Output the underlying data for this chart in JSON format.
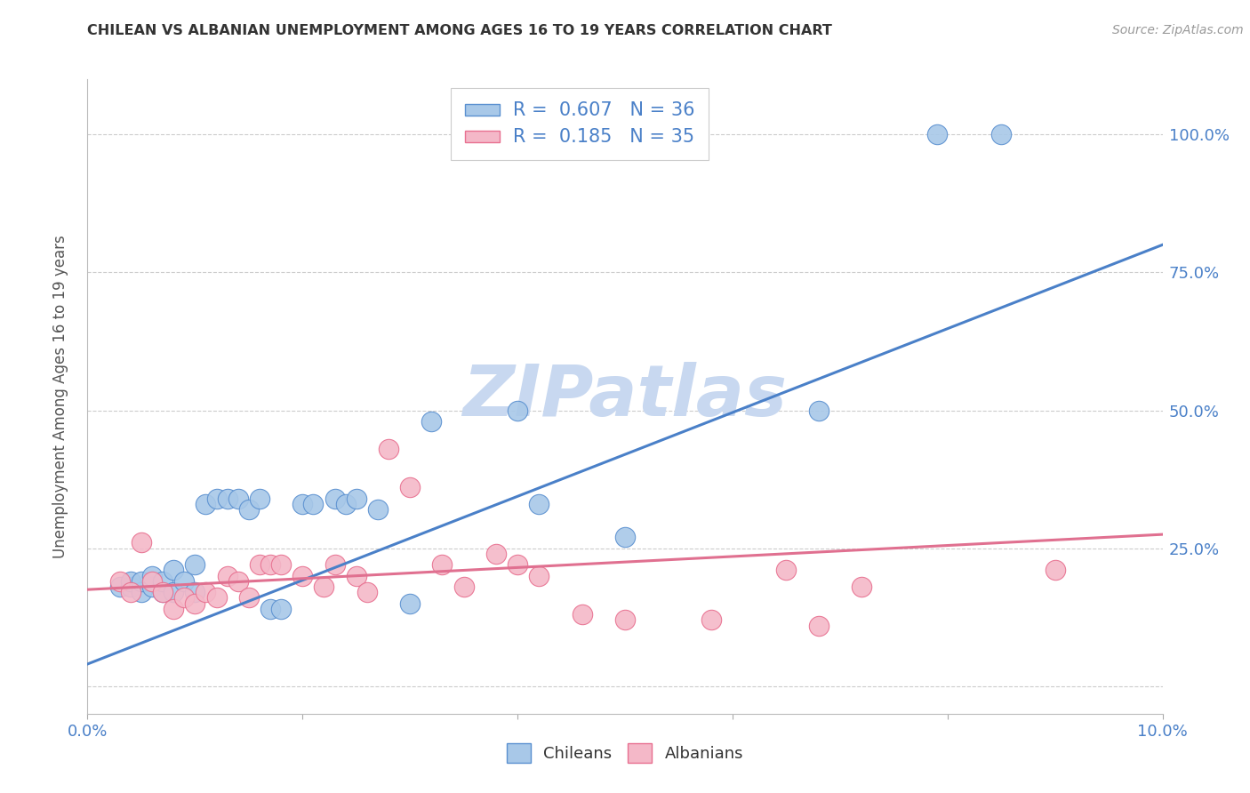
{
  "title": "CHILEAN VS ALBANIAN UNEMPLOYMENT AMONG AGES 16 TO 19 YEARS CORRELATION CHART",
  "source": "Source: ZipAtlas.com",
  "ylabel": "Unemployment Among Ages 16 to 19 years",
  "xlim": [
    0.0,
    0.1
  ],
  "ylim": [
    -0.05,
    1.1
  ],
  "x_ticks": [
    0.0,
    0.02,
    0.04,
    0.06,
    0.08,
    0.1
  ],
  "x_tick_labels": [
    "0.0%",
    "",
    "",
    "",
    "",
    "10.0%"
  ],
  "y_ticks": [
    0.0,
    0.25,
    0.5,
    0.75,
    1.0
  ],
  "y_tick_labels_right": [
    "",
    "25.0%",
    "50.0%",
    "75.0%",
    "100.0%"
  ],
  "chilean_R": 0.607,
  "chilean_N": 36,
  "albanian_R": 0.185,
  "albanian_N": 35,
  "chilean_color": "#A8C8E8",
  "albanian_color": "#F4B8C8",
  "chilean_edge_color": "#5A90D0",
  "albanian_edge_color": "#E87090",
  "chilean_line_color": "#4A80C8",
  "albanian_line_color": "#E07090",
  "watermark": "ZIPatlas",
  "watermark_color": "#C8D8F0",
  "chileans_scatter_x": [
    0.003,
    0.004,
    0.004,
    0.005,
    0.005,
    0.006,
    0.006,
    0.007,
    0.007,
    0.008,
    0.008,
    0.009,
    0.01,
    0.01,
    0.011,
    0.012,
    0.013,
    0.014,
    0.015,
    0.016,
    0.017,
    0.018,
    0.02,
    0.021,
    0.023,
    0.024,
    0.025,
    0.027,
    0.03,
    0.032,
    0.04,
    0.042,
    0.05,
    0.068,
    0.079,
    0.085
  ],
  "chileans_scatter_y": [
    0.18,
    0.18,
    0.19,
    0.17,
    0.19,
    0.18,
    0.2,
    0.17,
    0.19,
    0.17,
    0.21,
    0.19,
    0.17,
    0.22,
    0.33,
    0.34,
    0.34,
    0.34,
    0.32,
    0.34,
    0.14,
    0.14,
    0.33,
    0.33,
    0.34,
    0.33,
    0.34,
    0.32,
    0.15,
    0.48,
    0.5,
    0.33,
    0.27,
    0.5,
    1.0,
    1.0
  ],
  "albanians_scatter_x": [
    0.003,
    0.004,
    0.005,
    0.006,
    0.007,
    0.008,
    0.009,
    0.01,
    0.011,
    0.012,
    0.013,
    0.014,
    0.015,
    0.016,
    0.017,
    0.018,
    0.02,
    0.022,
    0.023,
    0.025,
    0.026,
    0.028,
    0.03,
    0.033,
    0.035,
    0.038,
    0.04,
    0.042,
    0.046,
    0.05,
    0.058,
    0.065,
    0.068,
    0.072,
    0.09
  ],
  "albanians_scatter_y": [
    0.19,
    0.17,
    0.26,
    0.19,
    0.17,
    0.14,
    0.16,
    0.15,
    0.17,
    0.16,
    0.2,
    0.19,
    0.16,
    0.22,
    0.22,
    0.22,
    0.2,
    0.18,
    0.22,
    0.2,
    0.17,
    0.43,
    0.36,
    0.22,
    0.18,
    0.24,
    0.22,
    0.2,
    0.13,
    0.12,
    0.12,
    0.21,
    0.11,
    0.18,
    0.21
  ],
  "chilean_trendline_x": [
    0.0,
    0.1
  ],
  "chilean_trendline_y": [
    0.04,
    0.8
  ],
  "albanian_trendline_x": [
    0.0,
    0.1
  ],
  "albanian_trendline_y": [
    0.175,
    0.275
  ]
}
